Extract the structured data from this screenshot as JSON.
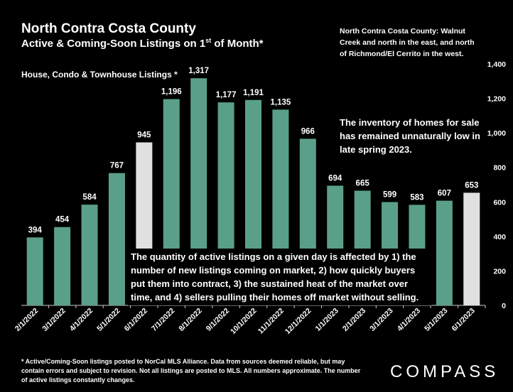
{
  "title": "North Contra Costa County",
  "subtitle_pre": "Active & Coming-Soon Listings on 1",
  "subtitle_sup": "st",
  "subtitle_post": " of Month*",
  "region_note": "North Contra Costa County: Walnut Creek and north in the east, and north of Richmond/El Cerrito in the west.",
  "series_label": "House, Condo & Townhouse Listings *",
  "annotation_inventory": "The inventory of homes for sale has remained unnaturally low in late spring 2023.",
  "annotation_quantity": "The quantity of active listings on a given day is affected by 1) the number of new listings coming on market, 2) how quickly buyers put them into contract, 3) the sustained heat of the market over time, and 4) sellers pulling their homes off market without selling.",
  "footnote": "* Active/Coming-Soon listings posted to NorCal MLS Alliance.  Data from sources deemed reliable, but may contain errors and subject to revision.  Not all listings are posted to MLS. All numbers approximate. The number of active listings constantly changes.",
  "logo": "COMPASS",
  "colors": {
    "bar": "#5a9f8a",
    "highlight": "#e0e0e0",
    "background": "#000000",
    "text": "#ffffff"
  },
  "chart_data": {
    "type": "bar",
    "categories": [
      "2/1/2022",
      "3/1/2022",
      "4/1/2022",
      "5/1/2022",
      "6/1/2022",
      "7/1/2022",
      "8/1/2022",
      "9/1/2022",
      "10/1/2022",
      "11/1/2022",
      "12/1/2022",
      "1/1/2023",
      "2/1/2023",
      "3/1/2023",
      "4/1/2023",
      "5/1/2023",
      "6/1/2023"
    ],
    "values": [
      394,
      454,
      584,
      767,
      945,
      1196,
      1317,
      1177,
      1191,
      1135,
      966,
      694,
      665,
      599,
      583,
      607,
      653
    ],
    "data_labels": [
      "394",
      "454",
      "584",
      "767",
      "945",
      "1,196",
      "1,317",
      "1,177",
      "1,191",
      "1,135",
      "966",
      "694",
      "665",
      "599",
      "583",
      "607",
      "653"
    ],
    "highlighted": [
      "6/1/2022",
      "6/1/2023"
    ],
    "ylim": [
      0,
      1400
    ],
    "yticks": [
      0,
      200,
      400,
      600,
      800,
      1000,
      1200,
      1400
    ],
    "ytick_labels": [
      "0",
      "200",
      "400",
      "600",
      "800",
      "1,000",
      "1,200",
      "1,400"
    ],
    "y_axis_position": "right",
    "grid": false,
    "legend": "none"
  }
}
